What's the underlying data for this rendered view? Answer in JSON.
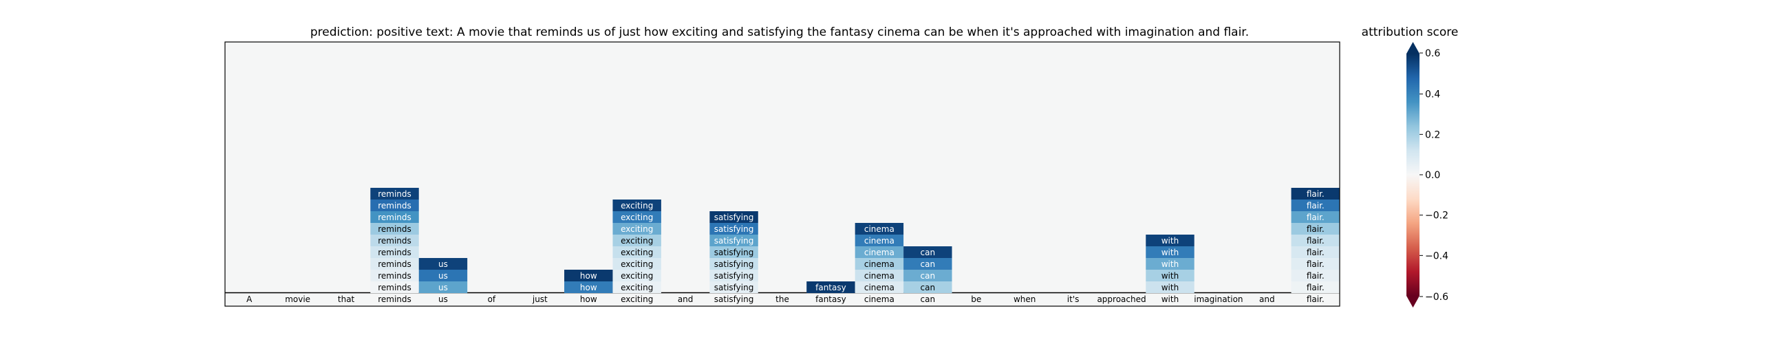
{
  "chart_data": {
    "type": "heatmap",
    "title": "prediction:  positive     text:  A movie that reminds us of just how exciting and satisfying the fantasy cinema can be when it's approached with imagination and flair.",
    "tokens": [
      "A",
      "movie",
      "that",
      "reminds",
      "us",
      "of",
      "just",
      "how",
      "exciting",
      "and",
      "satisfying",
      "the",
      "fantasy",
      "cinema",
      "can",
      "be",
      "when",
      "it's",
      "approached",
      "with",
      "imagination",
      "and",
      "flair."
    ],
    "bottom_row_label": "tokens",
    "columns": [
      {
        "token": "reminds",
        "scores": [
          0.56,
          0.46,
          0.36,
          0.22,
          0.16,
          0.12,
          0.08,
          0.05,
          0.02
        ]
      },
      {
        "token": "us",
        "scores": [
          0.56,
          0.44,
          0.32
        ]
      },
      {
        "token": "how",
        "scores": [
          0.58,
          0.42
        ]
      },
      {
        "token": "exciting",
        "scores": [
          0.56,
          0.42,
          0.3,
          0.2,
          0.14,
          0.1,
          0.07,
          0.04
        ]
      },
      {
        "token": "satisfying",
        "scores": [
          0.58,
          0.44,
          0.32,
          0.22,
          0.14,
          0.09,
          0.06
        ]
      },
      {
        "token": "fantasy",
        "scores": [
          0.58
        ]
      },
      {
        "token": "cinema",
        "scores": [
          0.56,
          0.42,
          0.3,
          0.2,
          0.13,
          0.08
        ]
      },
      {
        "token": "can",
        "scores": [
          0.56,
          0.42,
          0.3,
          0.2
        ]
      },
      {
        "token": "with",
        "scores": [
          0.56,
          0.42,
          0.3,
          0.2,
          0.13
        ]
      },
      {
        "token": "flair.",
        "scores": [
          0.58,
          0.44,
          0.32,
          0.22,
          0.14,
          0.1,
          0.07,
          0.05,
          0.03
        ]
      }
    ],
    "colorbar": {
      "label": "attribution score",
      "min": -0.6,
      "max": 0.6,
      "ticks": [
        0.6,
        0.4,
        0.2,
        0.0,
        -0.2,
        -0.4,
        -0.6
      ],
      "tick_labels": [
        "0.6",
        "0.4",
        "0.2",
        "0.0",
        "−0.2",
        "−0.4",
        "−0.6"
      ],
      "colormap": "RdBu",
      "extend": "both"
    },
    "background_color": "#f5f6f6",
    "colors": {
      "strong_positive": "#053061",
      "neutral": "#f7f7f7",
      "strong_negative": "#67001f"
    }
  }
}
